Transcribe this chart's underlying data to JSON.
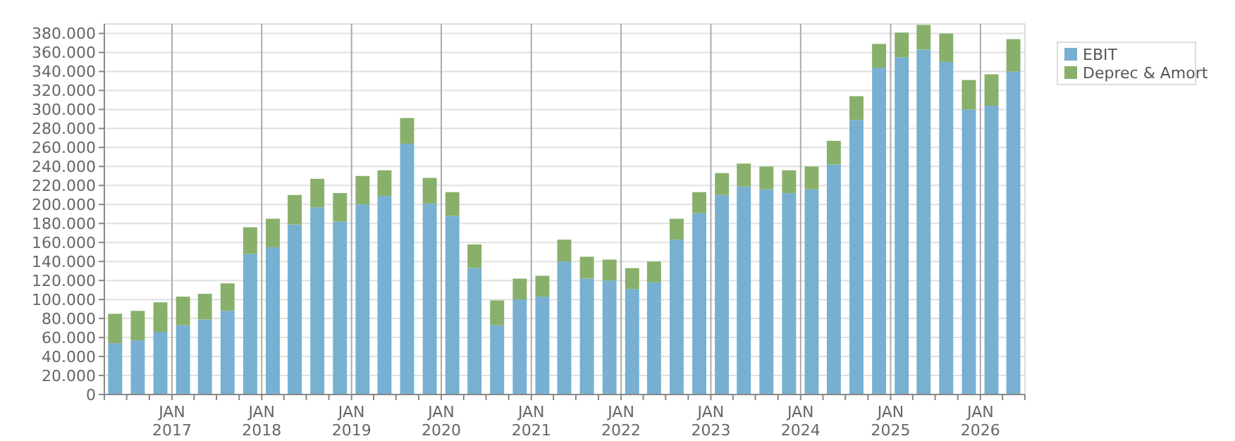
{
  "chart_data": {
    "type": "bar",
    "stacked": true,
    "legend": "top right",
    "grid": true,
    "x": [
      "2016-05-15",
      "2016-08-15",
      "2016-11-15",
      "2017-02-15",
      "2017-05-15",
      "2017-08-15",
      "2017-11-15",
      "2018-02-15",
      "2018-05-15",
      "2018-08-15",
      "2018-11-15",
      "2019-02-15",
      "2019-05-15",
      "2019-08-15",
      "2019-11-15",
      "2020-02-15",
      "2020-05-15",
      "2020-08-15",
      "2020-11-15",
      "2021-02-15",
      "2021-05-15",
      "2021-08-15",
      "2021-11-15",
      "2022-02-15",
      "2022-05-15",
      "2022-08-15",
      "2022-11-15",
      "2023-02-15",
      "2023-05-15",
      "2023-08-15",
      "2023-11-15",
      "2024-02-15",
      "2024-05-15",
      "2024-08-15",
      "2024-11-15",
      "2025-02-15",
      "2025-05-15",
      "2025-08-15",
      "2025-11-15",
      "2026-02-15",
      "2026-05-15"
    ],
    "xlim": [
      "2016-04-01",
      "2026-07-01"
    ],
    "xticks": [
      {
        "value": "2016-04-01",
        "label": null
      },
      {
        "value": "2016-07-01",
        "label": null
      },
      {
        "value": "2016-10-01",
        "label": null
      },
      {
        "value": "2017-01-01",
        "label": "JAN 2017"
      },
      {
        "value": "2017-04-01",
        "label": null
      },
      {
        "value": "2017-07-01",
        "label": null
      },
      {
        "value": "2017-10-01",
        "label": null
      },
      {
        "value": "2018-01-01",
        "label": "JAN 2018"
      },
      {
        "value": "2018-04-01",
        "label": null
      },
      {
        "value": "2018-07-01",
        "label": null
      },
      {
        "value": "2018-10-01",
        "label": null
      },
      {
        "value": "2019-01-01",
        "label": "JAN 2019"
      },
      {
        "value": "2019-04-01",
        "label": null
      },
      {
        "value": "2019-07-01",
        "label": null
      },
      {
        "value": "2019-10-01",
        "label": null
      },
      {
        "value": "2020-01-01",
        "label": "JAN 2020"
      },
      {
        "value": "2020-04-01",
        "label": null
      },
      {
        "value": "2020-07-01",
        "label": null
      },
      {
        "value": "2020-10-01",
        "label": null
      },
      {
        "value": "2021-01-01",
        "label": "JAN 2021"
      },
      {
        "value": "2021-04-01",
        "label": null
      },
      {
        "value": "2021-07-01",
        "label": null
      },
      {
        "value": "2021-10-01",
        "label": null
      },
      {
        "value": "2022-01-01",
        "label": "JAN 2022"
      },
      {
        "value": "2022-04-01",
        "label": null
      },
      {
        "value": "2022-07-01",
        "label": null
      },
      {
        "value": "2022-10-01",
        "label": null
      },
      {
        "value": "2023-01-01",
        "label": "JAN 2023"
      },
      {
        "value": "2023-04-01",
        "label": null
      },
      {
        "value": "2023-07-01",
        "label": null
      },
      {
        "value": "2023-10-01",
        "label": null
      },
      {
        "value": "2024-01-01",
        "label": "JAN 2024"
      },
      {
        "value": "2024-04-01",
        "label": null
      },
      {
        "value": "2024-07-01",
        "label": null
      },
      {
        "value": "2024-10-01",
        "label": null
      },
      {
        "value": "2025-01-01",
        "label": "JAN 2025"
      },
      {
        "value": "2025-04-01",
        "label": null
      },
      {
        "value": "2025-07-01",
        "label": null
      },
      {
        "value": "2025-10-01",
        "label": null
      },
      {
        "value": "2026-01-01",
        "label": "JAN 2026"
      },
      {
        "value": "2026-04-01",
        "label": null
      },
      {
        "value": "2026-07-01",
        "label": null
      }
    ],
    "ylim": [
      0,
      390000
    ],
    "yticks": [
      {
        "value": 0,
        "label": "0"
      },
      {
        "value": 20000,
        "label": "20.000"
      },
      {
        "value": 40000,
        "label": "40.000"
      },
      {
        "value": 60000,
        "label": "60.000"
      },
      {
        "value": 80000,
        "label": "80.000"
      },
      {
        "value": 100000,
        "label": "100.000"
      },
      {
        "value": 120000,
        "label": "120.000"
      },
      {
        "value": 140000,
        "label": "140.000"
      },
      {
        "value": 160000,
        "label": "160.000"
      },
      {
        "value": 180000,
        "label": "180.000"
      },
      {
        "value": 200000,
        "label": "200.000"
      },
      {
        "value": 220000,
        "label": "220.000"
      },
      {
        "value": 240000,
        "label": "240.000"
      },
      {
        "value": 260000,
        "label": "260.000"
      },
      {
        "value": 280000,
        "label": "280.000"
      },
      {
        "value": 300000,
        "label": "300.000"
      },
      {
        "value": 320000,
        "label": "320.000"
      },
      {
        "value": 340000,
        "label": "340.000"
      },
      {
        "value": 360000,
        "label": "360.000"
      },
      {
        "value": 380000,
        "label": "380.000"
      }
    ],
    "series": [
      {
        "name": "EBIT",
        "color": "#77b0d1",
        "values": [
          54000,
          57000,
          66000,
          73000,
          79000,
          88000,
          148000,
          155000,
          179000,
          197000,
          182000,
          200000,
          209000,
          264000,
          201000,
          188000,
          133000,
          73000,
          100000,
          103000,
          140000,
          122000,
          120000,
          111000,
          118000,
          163000,
          191000,
          210000,
          219000,
          216000,
          212000,
          216000,
          242000,
          289000,
          344000,
          355000,
          363000,
          350000,
          300000,
          304000,
          340000
        ]
      },
      {
        "name": "Deprec & Amort",
        "color": "#88b06a",
        "values": [
          31000,
          31000,
          31000,
          30000,
          27000,
          29000,
          28000,
          30000,
          31000,
          30000,
          30000,
          30000,
          27000,
          27000,
          27000,
          25000,
          25000,
          26000,
          22000,
          22000,
          23000,
          23000,
          22000,
          22000,
          22000,
          22000,
          22000,
          23000,
          24000,
          24000,
          24000,
          24000,
          25000,
          25000,
          25000,
          26000,
          26000,
          30000,
          31000,
          33000,
          34000
        ]
      }
    ]
  }
}
